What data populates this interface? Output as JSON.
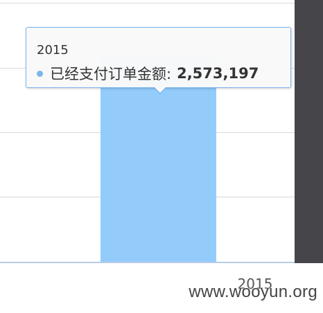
{
  "chart_data": {
    "type": "bar",
    "categories": [
      "2015"
    ],
    "series": [
      {
        "name": "已经支付订单金额",
        "values": [
          2573197
        ]
      }
    ],
    "ylim": [
      0,
      3200000
    ],
    "grid": true,
    "colors": {
      "bar": "#93ccfb",
      "tooltip_border": "#7cb5ec"
    }
  },
  "tooltip": {
    "title": "2015",
    "series_label": "已经支付订单金额:",
    "value": "2,573,197"
  },
  "x_axis": {
    "tick": "2015"
  },
  "watermark": "www.wooyun.org"
}
